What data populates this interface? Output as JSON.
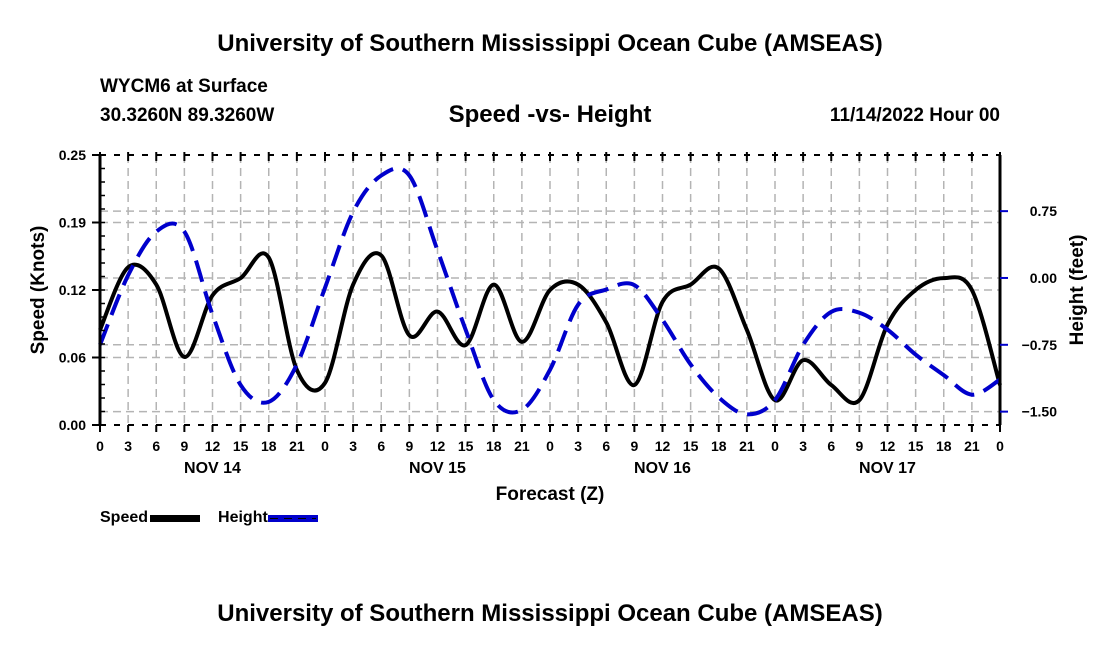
{
  "header": {
    "title_top": "University of Southern Mississippi Ocean Cube (AMSEAS)",
    "station": "WYCM6 at Surface",
    "coords": "30.3260N  89.3260W",
    "subtitle": "Speed -vs- Height",
    "datetime": "11/14/2022 Hour 00",
    "title_bottom": "University of Southern Mississippi Ocean Cube (AMSEAS)"
  },
  "colors": {
    "speed": "#000000",
    "height": "#0000cc",
    "grid": "#b4b4b4"
  },
  "legend": {
    "speed_label": "Speed",
    "height_label": "Height"
  },
  "chart_data": {
    "type": "line",
    "title": "Speed -vs- Height",
    "xlabel": "Forecast (Z)",
    "ylabel": "Speed (Knots)",
    "y2label": "Height (feet)",
    "xlim_hours": [
      0,
      96
    ],
    "ylim": [
      0,
      0.25
    ],
    "y2lim": [
      -1.65,
      1.38
    ],
    "yticks": [
      "0.00",
      "0.06",
      "0.12",
      "0.19",
      "0.25"
    ],
    "ytick_values": [
      0.0,
      0.0625,
      0.125,
      0.1875,
      0.25
    ],
    "y2ticks": [
      "0.75",
      "0.00",
      "−0.75",
      "−1.50"
    ],
    "y2tick_values": [
      0.75,
      0.0,
      -0.75,
      -1.5
    ],
    "xtick_labels": [
      "0",
      "3",
      "6",
      "9",
      "12",
      "15",
      "18",
      "21",
      "0",
      "3",
      "6",
      "9",
      "12",
      "15",
      "18",
      "21",
      "0",
      "3",
      "6",
      "9",
      "12",
      "15",
      "18",
      "21",
      "0",
      "3",
      "6",
      "9",
      "12",
      "15",
      "18",
      "21",
      "0"
    ],
    "date_labels": [
      {
        "label": "NOV 14",
        "hour": 12
      },
      {
        "label": "NOV 15",
        "hour": 36
      },
      {
        "label": "NOV 16",
        "hour": 60
      },
      {
        "label": "NOV 17",
        "hour": 84
      }
    ],
    "grid": true,
    "legend_position": "bottom-left",
    "x_hours": [
      0,
      3,
      6,
      9,
      12,
      15,
      18,
      21,
      24,
      27,
      30,
      33,
      36,
      39,
      42,
      45,
      48,
      51,
      54,
      57,
      60,
      63,
      66,
      69,
      72,
      75,
      78,
      81,
      84,
      87,
      90,
      93,
      96
    ],
    "series": [
      {
        "name": "Speed",
        "axis": "left",
        "style": "solid",
        "values": [
          0.088,
          0.146,
          0.13,
          0.063,
          0.12,
          0.136,
          0.155,
          0.051,
          0.039,
          0.13,
          0.157,
          0.083,
          0.105,
          0.074,
          0.13,
          0.077,
          0.125,
          0.13,
          0.095,
          0.037,
          0.114,
          0.13,
          0.145,
          0.088,
          0.023,
          0.06,
          0.037,
          0.023,
          0.093,
          0.125,
          0.136,
          0.125,
          0.037
        ]
      },
      {
        "name": "Height",
        "axis": "right",
        "style": "dashed",
        "values": [
          -0.75,
          0.03,
          0.52,
          0.52,
          -0.41,
          -1.2,
          -1.39,
          -0.97,
          -0.11,
          0.74,
          1.15,
          1.15,
          0.31,
          -0.58,
          -1.37,
          -1.48,
          -1.03,
          -0.3,
          -0.13,
          -0.08,
          -0.47,
          -0.97,
          -1.34,
          -1.53,
          -1.37,
          -0.75,
          -0.38,
          -0.39,
          -0.58,
          -0.86,
          -1.09,
          -1.31,
          -1.14
        ]
      }
    ]
  }
}
